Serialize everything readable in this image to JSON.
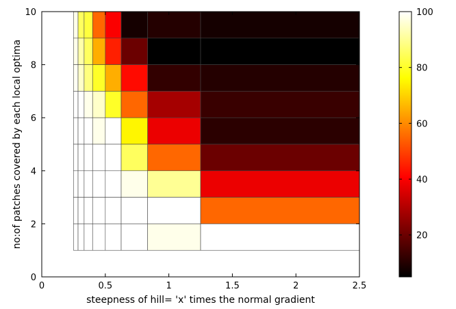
{
  "chart_data": {
    "type": "heatmap",
    "title": "",
    "xlabel": "steepness of hill= 'x' times the normal gradient",
    "ylabel": "no:of patches covered by each local optima",
    "xlim": [
      0,
      2.5
    ],
    "ylim": [
      0,
      10
    ],
    "x_ticks": [
      "0",
      "0.5",
      "1",
      "1.5",
      "2",
      "2.5"
    ],
    "y_ticks": [
      "0",
      "2",
      "4",
      "6",
      "8",
      "10"
    ],
    "x_edges": [
      0.25,
      0.2857,
      0.3333,
      0.4,
      0.5,
      0.625,
      0.8333,
      1.25,
      2.5
    ],
    "y_edges": [
      1,
      2,
      3,
      4,
      5,
      6,
      7,
      8,
      9,
      10
    ],
    "grid_note": "rows listed from y=9–10 (top) down to y=1–2 (bottom); columns left to right",
    "values": [
      [
        98,
        85,
        82,
        55,
        40,
        8,
        10,
        8
      ],
      [
        98,
        92,
        85,
        65,
        45,
        20,
        5,
        5
      ],
      [
        99,
        95,
        88,
        80,
        65,
        42,
        12,
        10
      ],
      [
        100,
        100,
        98,
        95,
        80,
        55,
        28,
        13
      ],
      [
        100,
        100,
        100,
        98,
        100,
        75,
        38,
        11
      ],
      [
        100,
        100,
        100,
        100,
        100,
        85,
        55,
        20
      ],
      [
        100,
        100,
        100,
        100,
        100,
        98,
        90,
        38
      ],
      [
        100,
        100,
        100,
        100,
        100,
        100,
        100,
        55
      ],
      [
        100,
        100,
        100,
        100,
        100,
        100,
        98,
        100
      ]
    ],
    "colorbar": {
      "range": [
        5,
        100
      ],
      "ticks": [
        20,
        40,
        60,
        80,
        100
      ],
      "colormap": "hot"
    },
    "grid": false
  }
}
